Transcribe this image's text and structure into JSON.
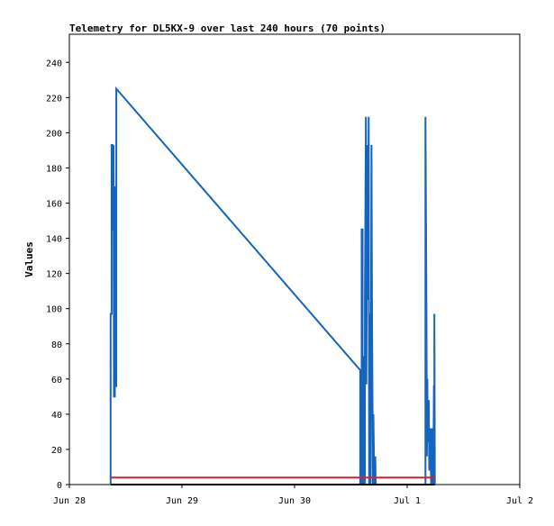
{
  "chart_data": {
    "type": "line",
    "title": "Telemetry for DL5KX-9 over last 240 hours (70 points)",
    "xlabel": "",
    "ylabel": "Values",
    "x_unit": "hours since Jun 28 00:00",
    "xlim": [
      0,
      96
    ],
    "ylim": [
      0,
      256
    ],
    "x_ticks": [
      {
        "label": "Jun 28",
        "x": 0
      },
      {
        "label": "Jun 29",
        "x": 24
      },
      {
        "label": "Jun 30",
        "x": 48
      },
      {
        "label": "Jul 1",
        "x": 72
      },
      {
        "label": "Jul 2",
        "x": 96
      }
    ],
    "y_ticks": [
      0,
      20,
      40,
      60,
      80,
      100,
      120,
      140,
      160,
      180,
      200,
      220,
      240
    ],
    "grid": false,
    "legend": "none",
    "series": [
      {
        "color": "#1565c0",
        "points": [
          [
            8.8,
            0
          ],
          [
            8.8,
            97
          ],
          [
            9.0,
            97
          ],
          [
            9.0,
            193
          ],
          [
            9.2,
            193
          ],
          [
            9.2,
            145
          ],
          [
            9.4,
            145
          ],
          [
            9.4,
            193
          ],
          [
            9.5,
            50
          ],
          [
            9.7,
            50
          ],
          [
            9.7,
            169
          ],
          [
            9.9,
            169
          ],
          [
            9.9,
            56
          ],
          [
            10.0,
            56
          ],
          [
            10.0,
            225
          ],
          [
            62.0,
            65
          ],
          [
            62.0,
            0
          ],
          [
            62.3,
            0
          ],
          [
            62.3,
            145
          ],
          [
            62.5,
            145
          ],
          [
            62.5,
            0
          ],
          [
            62.7,
            73
          ],
          [
            62.8,
            0
          ],
          [
            63.0,
            0
          ],
          [
            63.0,
            105
          ],
          [
            63.2,
            209
          ],
          [
            63.3,
            57
          ],
          [
            63.5,
            193
          ],
          [
            63.6,
            105
          ],
          [
            63.8,
            209
          ],
          [
            63.9,
            0
          ],
          [
            64.1,
            97
          ],
          [
            64.2,
            0
          ],
          [
            64.4,
            193
          ],
          [
            64.5,
            105
          ],
          [
            64.7,
            0
          ],
          [
            64.8,
            40
          ],
          [
            65.0,
            0
          ],
          [
            65.2,
            16
          ],
          [
            65.3,
            0
          ],
          [
            75.9,
            0
          ],
          [
            75.9,
            209
          ],
          [
            76.1,
            97
          ],
          [
            76.2,
            16
          ],
          [
            76.3,
            60
          ],
          [
            76.4,
            24
          ],
          [
            76.6,
            48
          ],
          [
            76.7,
            8
          ],
          [
            76.9,
            32
          ],
          [
            77.0,
            16
          ],
          [
            77.1,
            0
          ],
          [
            77.3,
            32
          ],
          [
            77.4,
            8
          ],
          [
            77.5,
            0
          ],
          [
            77.6,
            16
          ],
          [
            77.7,
            56
          ],
          [
            77.8,
            56
          ],
          [
            77.8,
            97
          ],
          [
            77.9,
            0
          ]
        ]
      },
      {
        "color": "#e02020",
        "points": [
          [
            8.8,
            4
          ],
          [
            77.9,
            4
          ]
        ]
      },
      {
        "color": "#000000",
        "points": [
          [
            8.8,
            0
          ],
          [
            77.9,
            0
          ]
        ]
      }
    ]
  }
}
